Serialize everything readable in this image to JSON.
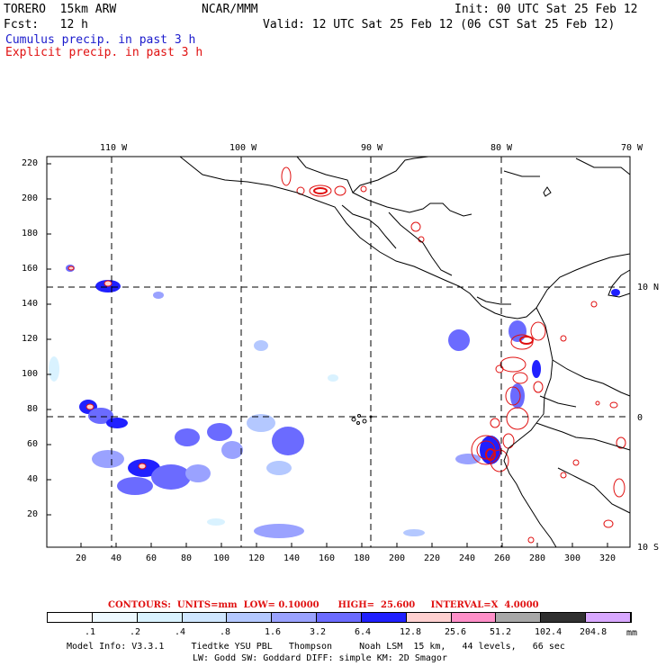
{
  "header": {
    "model": "TORERO  15km ARW",
    "org": "NCAR/MMM",
    "init": "Init: 00 UTC Sat 25 Feb 12",
    "fcst": "Fcst:   12 h",
    "valid": "Valid: 12 UTC Sat 25 Feb 12 (06 CST Sat 25 Feb 12)",
    "cumulus": "Cumulus precip. in past 3 h",
    "explicit": "Explicit precip. in past 3 h"
  },
  "top_axis": [
    "110 W",
    "100 W",
    "90 W",
    "80 W",
    "70 W"
  ],
  "right_axis": [
    "10 N",
    "0",
    "10 S"
  ],
  "left_axis": [
    "220",
    "200",
    "180",
    "160",
    "140",
    "120",
    "100",
    "80",
    "60",
    "40",
    "20"
  ],
  "bottom_axis": [
    "20",
    "40",
    "60",
    "80",
    "100",
    "120",
    "140",
    "160",
    "180",
    "200",
    "220",
    "240",
    "260",
    "280",
    "300",
    "320"
  ],
  "contour_info": "CONTOURS:  UNITS=mm  LOW= 0.10000      HIGH=  25.600     INTERVAL=X  4.0000",
  "colorbar": {
    "labels": [
      ".1",
      ".2",
      ".4",
      ".8",
      "1.6",
      "3.2",
      "6.4",
      "12.8",
      "25.6",
      "51.2",
      "102.4",
      "204.8"
    ],
    "units": "mm",
    "colors": [
      "#ffffff",
      "#eef9ff",
      "#d9f2ff",
      "#cfe6ff",
      "#b4c8ff",
      "#9aa2ff",
      "#6b6bff",
      "#2020ff",
      "#ffd0d0",
      "#ff8fc8",
      "#a8a8a8",
      "#303030",
      "#d8a8ff"
    ]
  },
  "footer": {
    "line1": "Model Info: V3.3.1     Tiedtke YSU PBL   Thompson     Noah LSM  15 km,   44 levels,   66 sec",
    "line2": "LW: Godd SW: Goddard DIFF: simple KM: 2D Smagor"
  }
}
